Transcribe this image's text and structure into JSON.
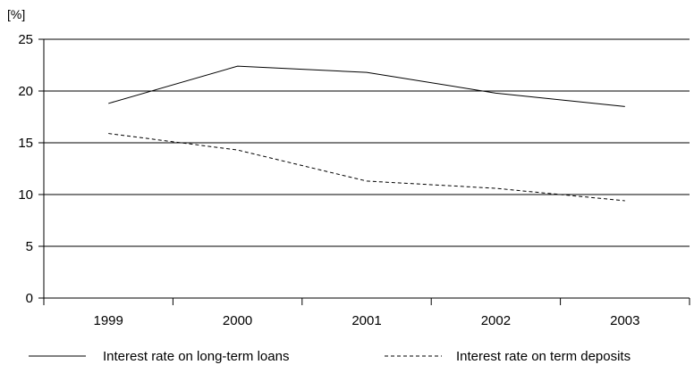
{
  "chart_data": {
    "type": "line",
    "y_unit": "[%]",
    "categories": [
      "1999",
      "2000",
      "2001",
      "2002",
      "2003"
    ],
    "ylim": [
      0,
      25
    ],
    "y_ticks": [
      0,
      5,
      10,
      15,
      20,
      25
    ],
    "grid": "horizontal",
    "legend_placement": "bottom",
    "series": [
      {
        "name": "Interest rate on long-term loans",
        "values": [
          18.8,
          22.4,
          21.8,
          19.8,
          18.5
        ],
        "line_style": "solid",
        "color": "#000000"
      },
      {
        "name": "Interest rate on term deposits",
        "values": [
          15.9,
          14.3,
          11.3,
          10.6,
          9.4
        ],
        "line_style": "dashed",
        "color": "#000000"
      }
    ]
  }
}
